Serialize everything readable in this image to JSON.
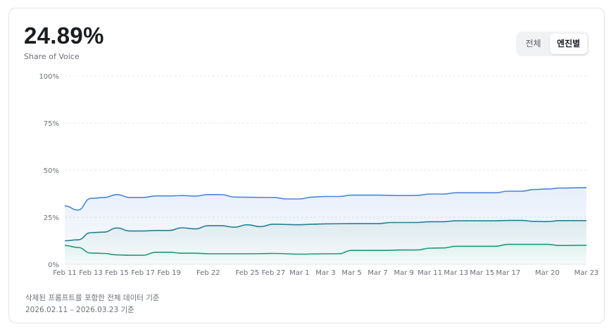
{
  "header": {
    "metric_value": "24.89%",
    "metric_label": "Share of Voice"
  },
  "toggle": {
    "options": [
      "전체",
      "엔진별"
    ],
    "selected": "엔진별"
  },
  "footer": {
    "note": "삭제된 프롬프트를 포함한 전체 데이터 기준",
    "date_range": "2026.02.11 – 2026.03.23 기준"
  },
  "colors": {
    "series_top": "#4a86d8",
    "series_mid": "#277f98",
    "series_bottom": "#1d9c7c",
    "grid": "#e6e8eb",
    "axis_text": "#6b7078"
  },
  "chart_data": {
    "type": "area",
    "stacked": true,
    "title": "",
    "xlabel": "",
    "ylabel": "",
    "ylim": [
      0,
      100
    ],
    "y_ticks": [
      "0%",
      "25%",
      "50%",
      "75%",
      "100%"
    ],
    "grid": true,
    "x_start": "2026-02-11",
    "x_end": "2026-03-23",
    "x_ticks": [
      {
        "date": "2026-02-11",
        "label": "Feb 11"
      },
      {
        "date": "2026-02-13",
        "label": "Feb 13"
      },
      {
        "date": "2026-02-15",
        "label": "Feb 15"
      },
      {
        "date": "2026-02-17",
        "label": "Feb 17"
      },
      {
        "date": "2026-02-19",
        "label": "Feb 19"
      },
      {
        "date": "2026-02-22",
        "label": "Feb 22"
      },
      {
        "date": "2026-02-25",
        "label": "Feb 25"
      },
      {
        "date": "2026-02-27",
        "label": "Feb 27"
      },
      {
        "date": "2026-03-01",
        "label": "Mar 1"
      },
      {
        "date": "2026-03-03",
        "label": "Mar 3"
      },
      {
        "date": "2026-03-05",
        "label": "Mar 5"
      },
      {
        "date": "2026-03-07",
        "label": "Mar 7"
      },
      {
        "date": "2026-03-09",
        "label": "Mar 9"
      },
      {
        "date": "2026-03-11",
        "label": "Mar 11"
      },
      {
        "date": "2026-03-13",
        "label": "Mar 13"
      },
      {
        "date": "2026-03-15",
        "label": "Mar 15"
      },
      {
        "date": "2026-03-17",
        "label": "Mar 17"
      },
      {
        "date": "2026-03-20",
        "label": "Mar 20"
      },
      {
        "date": "2026-03-23",
        "label": "Mar 23"
      }
    ],
    "series": [
      {
        "values": [
          [
            "2026-02-11",
            10.0
          ],
          [
            "2026-02-12",
            9.0
          ],
          [
            "2026-02-13",
            6.0
          ],
          [
            "2026-02-14",
            5.8
          ],
          [
            "2026-02-15",
            5.0
          ],
          [
            "2026-02-16",
            4.8
          ],
          [
            "2026-02-17",
            4.8
          ],
          [
            "2026-02-18",
            6.4
          ],
          [
            "2026-02-19",
            6.4
          ],
          [
            "2026-02-20",
            5.9
          ],
          [
            "2026-02-21",
            5.9
          ],
          [
            "2026-02-22",
            5.6
          ],
          [
            "2026-02-24",
            5.6
          ],
          [
            "2026-02-25",
            5.6
          ],
          [
            "2026-02-27",
            5.8
          ],
          [
            "2026-03-01",
            5.4
          ],
          [
            "2026-03-03",
            5.6
          ],
          [
            "2026-03-04",
            5.6
          ],
          [
            "2026-03-05",
            7.4
          ],
          [
            "2026-03-07",
            7.4
          ],
          [
            "2026-03-09",
            7.6
          ],
          [
            "2026-03-10",
            7.6
          ],
          [
            "2026-03-11",
            8.6
          ],
          [
            "2026-03-12",
            8.7
          ],
          [
            "2026-03-13",
            9.6
          ],
          [
            "2026-03-15",
            9.6
          ],
          [
            "2026-03-16",
            9.6
          ],
          [
            "2026-03-17",
            10.6
          ],
          [
            "2026-03-19",
            10.6
          ],
          [
            "2026-03-20",
            10.6
          ],
          [
            "2026-03-21",
            10.0
          ],
          [
            "2026-03-23",
            10.1
          ]
        ]
      },
      {
        "values": [
          [
            "2026-02-11",
            12.5
          ],
          [
            "2026-02-12",
            13.0
          ],
          [
            "2026-02-13",
            16.8
          ],
          [
            "2026-02-14",
            17.1
          ],
          [
            "2026-02-15",
            19.3
          ],
          [
            "2026-02-16",
            17.7
          ],
          [
            "2026-02-17",
            17.7
          ],
          [
            "2026-02-18",
            18.0
          ],
          [
            "2026-02-19",
            18.0
          ],
          [
            "2026-02-20",
            19.4
          ],
          [
            "2026-02-21",
            18.8
          ],
          [
            "2026-02-22",
            20.5
          ],
          [
            "2026-02-23",
            20.5
          ],
          [
            "2026-02-24",
            19.7
          ],
          [
            "2026-02-25",
            21.0
          ],
          [
            "2026-02-26",
            20.0
          ],
          [
            "2026-02-27",
            21.3
          ],
          [
            "2026-03-01",
            21.0
          ],
          [
            "2026-03-02",
            21.3
          ],
          [
            "2026-03-03",
            21.5
          ],
          [
            "2026-03-05",
            21.6
          ],
          [
            "2026-03-07",
            21.6
          ],
          [
            "2026-03-08",
            22.2
          ],
          [
            "2026-03-10",
            22.2
          ],
          [
            "2026-03-11",
            22.6
          ],
          [
            "2026-03-12",
            22.6
          ],
          [
            "2026-03-13",
            23.1
          ],
          [
            "2026-03-15",
            23.1
          ],
          [
            "2026-03-16",
            23.1
          ],
          [
            "2026-03-17",
            23.3
          ],
          [
            "2026-03-18",
            23.3
          ],
          [
            "2026-03-19",
            22.8
          ],
          [
            "2026-03-20",
            22.7
          ],
          [
            "2026-03-21",
            23.2
          ],
          [
            "2026-03-23",
            23.2
          ]
        ]
      },
      {
        "values": [
          [
            "2026-02-11",
            31.0
          ],
          [
            "2026-02-12",
            28.8
          ],
          [
            "2026-02-13",
            35.0
          ],
          [
            "2026-02-14",
            35.5
          ],
          [
            "2026-02-15",
            37.0
          ],
          [
            "2026-02-16",
            35.5
          ],
          [
            "2026-02-17",
            35.5
          ],
          [
            "2026-02-18",
            36.3
          ],
          [
            "2026-02-19",
            36.3
          ],
          [
            "2026-02-20",
            36.5
          ],
          [
            "2026-02-21",
            36.2
          ],
          [
            "2026-02-22",
            37.0
          ],
          [
            "2026-02-23",
            37.0
          ],
          [
            "2026-02-24",
            35.7
          ],
          [
            "2026-02-25",
            35.6
          ],
          [
            "2026-02-27",
            35.5
          ],
          [
            "2026-02-28",
            34.7
          ],
          [
            "2026-03-01",
            34.7
          ],
          [
            "2026-03-02",
            35.7
          ],
          [
            "2026-03-03",
            36.0
          ],
          [
            "2026-03-04",
            36.0
          ],
          [
            "2026-03-05",
            36.7
          ],
          [
            "2026-03-07",
            36.7
          ],
          [
            "2026-03-09",
            36.5
          ],
          [
            "2026-03-10",
            36.6
          ],
          [
            "2026-03-11",
            37.3
          ],
          [
            "2026-03-12",
            37.3
          ],
          [
            "2026-03-13",
            38.0
          ],
          [
            "2026-03-15",
            38.0
          ],
          [
            "2026-03-16",
            38.0
          ],
          [
            "2026-03-17",
            38.8
          ],
          [
            "2026-03-18",
            38.8
          ],
          [
            "2026-03-19",
            39.7
          ],
          [
            "2026-03-20",
            40.0
          ],
          [
            "2026-03-21",
            40.5
          ],
          [
            "2026-03-23",
            40.7
          ]
        ]
      }
    ]
  }
}
